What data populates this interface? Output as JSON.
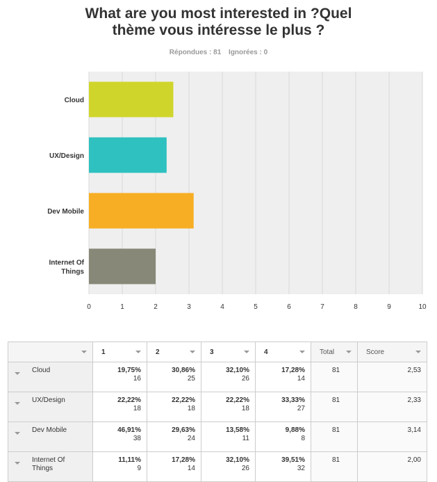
{
  "title_line1": "What are you most interested in ?Quel",
  "title_line2": "thème vous intéresse le plus ?",
  "stats": {
    "answered": "Répondues : 81",
    "skipped": "Ignorées : 0"
  },
  "chart_data": {
    "type": "bar",
    "orientation": "horizontal",
    "categories": [
      "Cloud",
      "UX/Design",
      "Dev Mobile",
      "Internet Of Things"
    ],
    "values": [
      2.53,
      2.33,
      3.14,
      2.0
    ],
    "colors": [
      "#d0d52c",
      "#2fc0c0",
      "#f7ae24",
      "#878877"
    ],
    "xlim": [
      0,
      10
    ],
    "xticks": [
      "0",
      "1",
      "2",
      "3",
      "4",
      "5",
      "6",
      "7",
      "8",
      "9",
      "10"
    ],
    "grid": true
  },
  "table": {
    "headers": [
      "1",
      "2",
      "3",
      "4",
      "Total",
      "Score"
    ],
    "rows": [
      {
        "label": "Cloud",
        "cells": [
          [
            "19,75%",
            "16"
          ],
          [
            "30,86%",
            "25"
          ],
          [
            "32,10%",
            "26"
          ],
          [
            "17,28%",
            "14"
          ]
        ],
        "total": "81",
        "score": "2,53"
      },
      {
        "label": "UX/Design",
        "cells": [
          [
            "22,22%",
            "18"
          ],
          [
            "22,22%",
            "18"
          ],
          [
            "22,22%",
            "18"
          ],
          [
            "33,33%",
            "27"
          ]
        ],
        "total": "81",
        "score": "2,33"
      },
      {
        "label": "Dev Mobile",
        "cells": [
          [
            "46,91%",
            "38"
          ],
          [
            "29,63%",
            "24"
          ],
          [
            "13,58%",
            "11"
          ],
          [
            "9,88%",
            "8"
          ]
        ],
        "total": "81",
        "score": "3,14"
      },
      {
        "label": "Internet Of Things",
        "cells": [
          [
            "11,11%",
            "9"
          ],
          [
            "17,28%",
            "14"
          ],
          [
            "32,10%",
            "26"
          ],
          [
            "39,51%",
            "32"
          ]
        ],
        "total": "81",
        "score": "2,00"
      }
    ]
  }
}
